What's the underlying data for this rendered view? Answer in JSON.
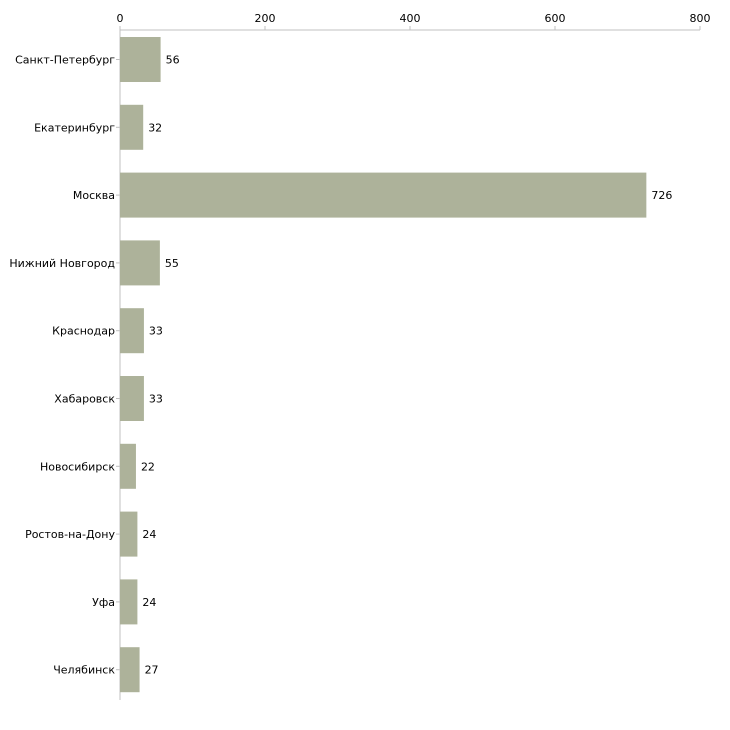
{
  "chart_data": {
    "type": "bar",
    "orientation": "horizontal",
    "title": "",
    "xlabel": "",
    "ylabel": "",
    "categories": [
      "Санкт-Петербург",
      "Екатеринбург",
      "Москва",
      "Нижний Новгород",
      "Краснодар",
      "Хабаровск",
      "Новосибирск",
      "Ростов-на-Дону",
      "Уфа",
      "Челябинск"
    ],
    "values": [
      56,
      32,
      726,
      55,
      33,
      33,
      22,
      24,
      24,
      27
    ],
    "xlim": [
      0,
      800
    ],
    "xticks": [
      0,
      200,
      400,
      600,
      800
    ],
    "axis_position": "top",
    "grid": false,
    "legend": "none",
    "bar_color": "#adb29a",
    "axis_color": "#c0c0c0"
  }
}
